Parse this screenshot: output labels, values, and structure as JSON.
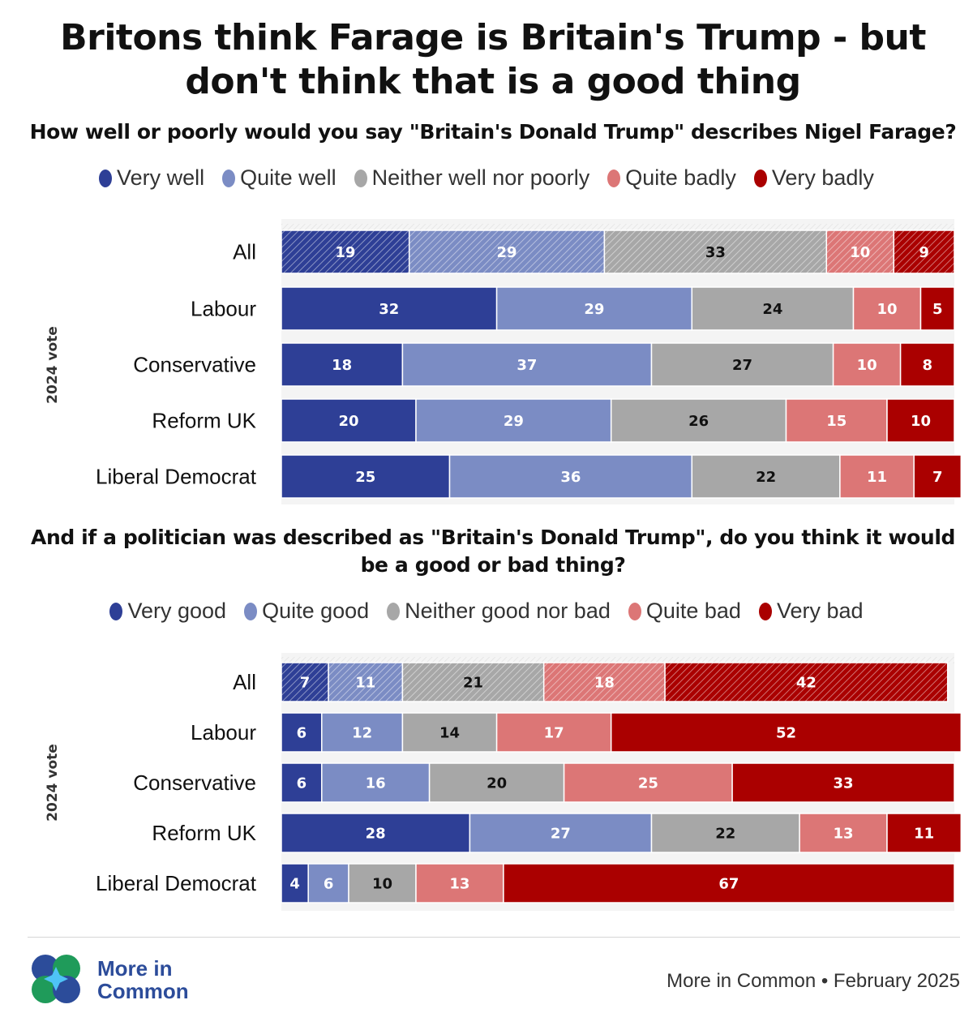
{
  "title_line1": "Britons think Farage is Britain's Trump - but",
  "title_line2": "don't think that is a good thing",
  "colors": {
    "very_positive": "#2e3f96",
    "quite_positive": "#7b8cc4",
    "neutral": "#a7a7a7",
    "quite_negative": "#dc7676",
    "very_negative": "#aa0000"
  },
  "chart_data": [
    {
      "type": "bar",
      "stacked": true,
      "orientation": "horizontal",
      "title": "How well or poorly would you say \"Britain's Donald Trump\" describes Nigel Farage?",
      "ylabel": "2024 vote",
      "categories": [
        "All",
        "Labour",
        "Conservative",
        "Reform UK",
        "Liberal Democrat"
      ],
      "series": [
        {
          "name": "Very well",
          "color": "#2e3f96",
          "values": [
            19,
            32,
            18,
            20,
            25
          ]
        },
        {
          "name": "Quite well",
          "color": "#7b8cc4",
          "values": [
            29,
            29,
            37,
            29,
            36
          ]
        },
        {
          "name": "Neither well nor poorly",
          "color": "#a7a7a7",
          "values": [
            33,
            24,
            27,
            26,
            22
          ]
        },
        {
          "name": "Quite badly",
          "color": "#dc7676",
          "values": [
            10,
            10,
            10,
            15,
            11
          ]
        },
        {
          "name": "Very badly",
          "color": "#aa0000",
          "values": [
            9,
            5,
            8,
            10,
            7
          ]
        }
      ],
      "hatched_category": "All",
      "legend_position": "top"
    },
    {
      "type": "bar",
      "stacked": true,
      "orientation": "horizontal",
      "title": "And if a politician was described as \"Britain's Donald Trump\", do you think it would be a good or bad thing?",
      "ylabel": "2024 vote",
      "categories": [
        "All",
        "Labour",
        "Conservative",
        "Reform UK",
        "Liberal Democrat"
      ],
      "series": [
        {
          "name": "Very good",
          "color": "#2e3f96",
          "values": [
            7,
            6,
            6,
            28,
            4
          ]
        },
        {
          "name": "Quite good",
          "color": "#7b8cc4",
          "values": [
            11,
            12,
            16,
            27,
            6
          ]
        },
        {
          "name": "Neither good nor bad",
          "color": "#a7a7a7",
          "values": [
            21,
            14,
            20,
            22,
            10
          ]
        },
        {
          "name": "Quite bad",
          "color": "#dc7676",
          "values": [
            18,
            17,
            25,
            13,
            13
          ]
        },
        {
          "name": "Very bad",
          "color": "#aa0000",
          "values": [
            42,
            52,
            33,
            11,
            67
          ]
        }
      ],
      "hatched_category": "All",
      "legend_position": "top"
    }
  ],
  "footer": {
    "logo_line1": "More in",
    "logo_line2": "Common",
    "source": "More in Common • February 2025"
  }
}
